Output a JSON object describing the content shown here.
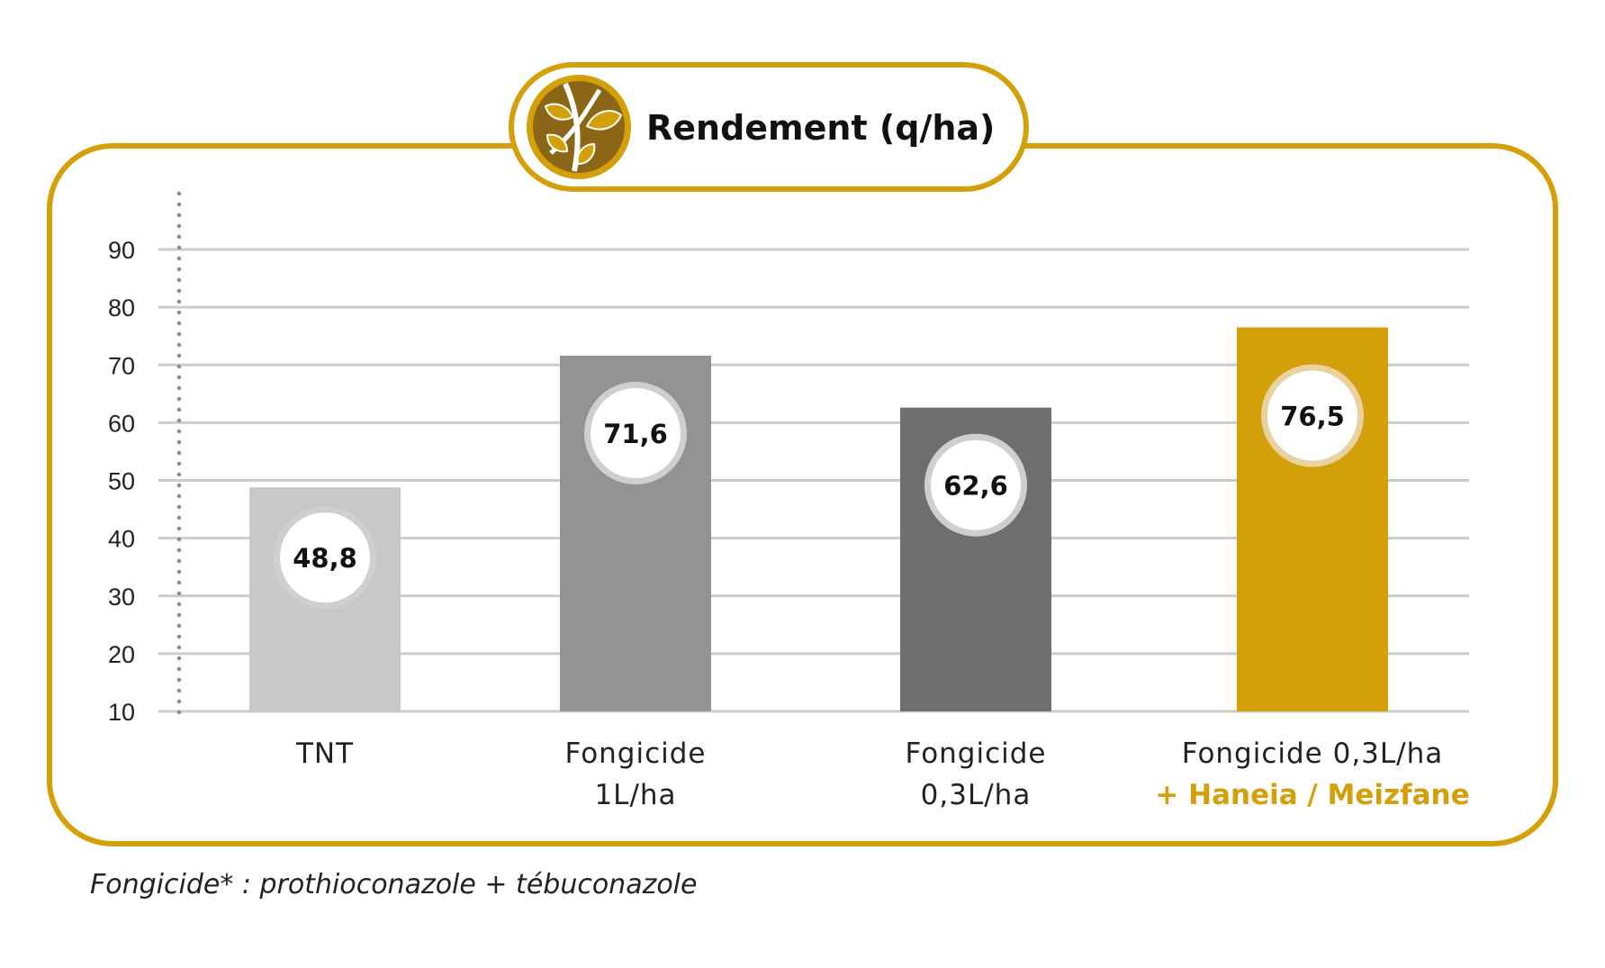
{
  "title": "Rendement (q/ha)",
  "icon": "leaf-sprout-icon",
  "footnote": "Fongicide* : prothioconazole + tébuconazole",
  "colors": {
    "frame": "#D4A00A",
    "icon_fill": "#8A6616",
    "grid": "#CCCCCC",
    "axis_dots": "#8A8A8A",
    "accent_text": "#D4A00A"
  },
  "chart_data": {
    "type": "bar",
    "categories": [
      "TNT",
      "Fongicide 1L/ha",
      "Fongicide 0,3L/ha",
      "Fongicide 0,3L/ha + Haneia / Meizfane"
    ],
    "category_lines": [
      [
        {
          "text": "TNT",
          "accent": false
        }
      ],
      [
        {
          "text": "Fongicide",
          "accent": false
        },
        {
          "text": "1L/ha",
          "accent": false
        }
      ],
      [
        {
          "text": "Fongicide",
          "accent": false
        },
        {
          "text": "0,3L/ha",
          "accent": false
        }
      ],
      [
        {
          "text": "Fongicide 0,3L/ha",
          "accent": false
        },
        {
          "text": "+ Haneia / Meizfane",
          "accent": true
        }
      ]
    ],
    "values": [
      48.8,
      71.6,
      62.6,
      76.5
    ],
    "value_labels": [
      "48,8",
      "71,6",
      "62,6",
      "76,5"
    ],
    "bar_colors": [
      "#C8C8C8",
      "#939393",
      "#6E6E6E",
      "#D4A00A"
    ],
    "label_ring_colors": [
      "#CFCFCF",
      "#CFCFCF",
      "#CFCFCF",
      "#E8D3A0"
    ],
    "yticks": [
      10,
      20,
      30,
      40,
      50,
      60,
      70,
      80,
      90
    ],
    "ylim": [
      10,
      90
    ],
    "grid": true,
    "xlabel": "",
    "ylabel": ""
  }
}
